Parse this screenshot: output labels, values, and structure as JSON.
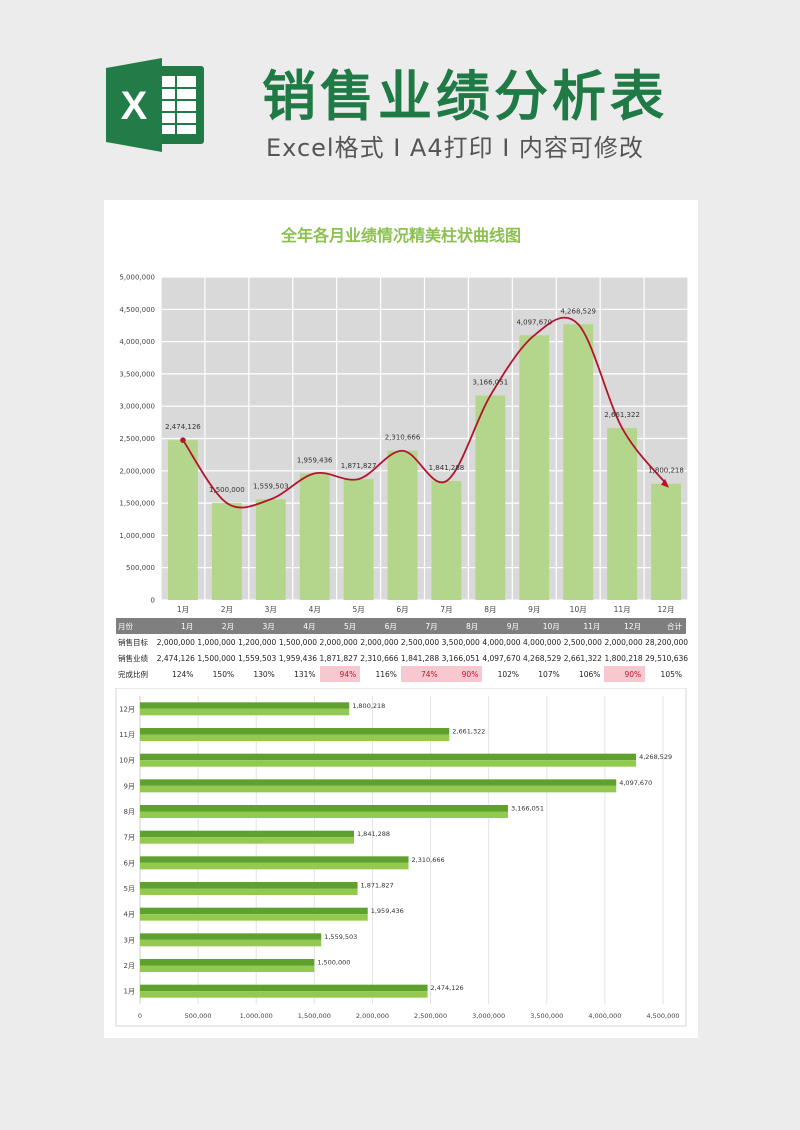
{
  "header": {
    "title": "销售业绩分析表",
    "subtitle": "Excel格式 I A4打印 I 内容可修改",
    "logo_letter": "X"
  },
  "colors": {
    "brand_green": "#1f7a45",
    "title_green": "#8cc152",
    "bar_green": "#b4d58c",
    "bar2_dark": "#5fa12f",
    "bar2_light": "#92c94e",
    "curve_red": "#b3152b",
    "plot_bg": "#d9d9d9",
    "low_bg": "#f8c8d0"
  },
  "table": {
    "headers": [
      "月份",
      "1月",
      "2月",
      "3月",
      "4月",
      "5月",
      "6月",
      "7月",
      "8月",
      "9月",
      "10月",
      "11月",
      "12月",
      "合计"
    ],
    "rows": [
      {
        "label": "销售目标",
        "cells": [
          "2,000,000",
          "1,000,000",
          "1,200,000",
          "1,500,000",
          "2,000,000",
          "2,000,000",
          "2,500,000",
          "3,500,000",
          "4,000,000",
          "4,000,000",
          "2,500,000",
          "2,000,000",
          "28,200,000"
        ],
        "low": []
      },
      {
        "label": "销售业绩",
        "cells": [
          "2,474,126",
          "1,500,000",
          "1,559,503",
          "1,959,436",
          "1,871,827",
          "2,310,666",
          "1,841,288",
          "3,166,051",
          "4,097,670",
          "4,268,529",
          "2,661,322",
          "1,800,218",
          "29,510,636"
        ],
        "low": []
      },
      {
        "label": "完成比例",
        "cells": [
          "124%",
          "150%",
          "130%",
          "131%",
          "94%",
          "116%",
          "74%",
          "90%",
          "102%",
          "107%",
          "106%",
          "90%",
          "105%"
        ],
        "low": [
          4,
          6,
          7,
          11
        ]
      }
    ]
  },
  "chart_data": [
    {
      "type": "bar",
      "title": "全年各月业绩情况精美柱状曲线图",
      "categories": [
        "1月",
        "2月",
        "3月",
        "4月",
        "5月",
        "6月",
        "7月",
        "8月",
        "9月",
        "10月",
        "11月",
        "12月"
      ],
      "values": [
        2474126,
        1500000,
        1559503,
        1959436,
        1871827,
        2310666,
        1841288,
        3166051,
        4097670,
        4268529,
        2661322,
        1800218
      ],
      "value_labels": [
        "2,474,126",
        "1,500,000",
        "1,559,503",
        "1,959,436",
        "1,871,827",
        "2,310,666",
        "1,841,288",
        "3,166,051",
        "4,097,670",
        "4,268,529",
        "2,661,322",
        "1,800,218"
      ],
      "ylim": [
        0,
        5000000
      ],
      "yticks": [
        0,
        500000,
        1000000,
        1500000,
        2000000,
        2500000,
        3000000,
        3500000,
        4000000,
        4500000,
        5000000
      ],
      "ytick_labels": [
        "0",
        "500,000",
        "1,000,000",
        "1,500,000",
        "2,000,000",
        "2,500,000",
        "3,000,000",
        "3,500,000",
        "4,000,000",
        "4,500,000",
        "5,000,000"
      ],
      "overlay": "smooth-line",
      "grid": true
    },
    {
      "type": "bar",
      "orientation": "horizontal",
      "categories": [
        "1月",
        "2月",
        "3月",
        "4月",
        "5月",
        "6月",
        "7月",
        "8月",
        "9月",
        "10月",
        "11月",
        "12月"
      ],
      "values": [
        2474126,
        1500000,
        1559503,
        1959436,
        1871827,
        2310666,
        1841288,
        3166051,
        4097670,
        4268529,
        2661322,
        1800218
      ],
      "value_labels": [
        "2,474,126",
        "1,500,000",
        "1,559,503",
        "1,959,436",
        "1,871,827",
        "2,310,666",
        "1,841,288",
        "3,166,051",
        "4,097,670",
        "4,268,529",
        "2,661,322",
        "1,800,218"
      ],
      "xlim": [
        0,
        4500000
      ],
      "xticks": [
        0,
        500000,
        1000000,
        1500000,
        2000000,
        2500000,
        3000000,
        3500000,
        4000000,
        4500000
      ],
      "xtick_labels": [
        "0",
        "500,000",
        "1,000,000",
        "1,500,000",
        "2,000,000",
        "2,500,000",
        "3,000,000",
        "3,500,000",
        "4,000,000",
        "4,500,000"
      ],
      "grid": true
    }
  ]
}
